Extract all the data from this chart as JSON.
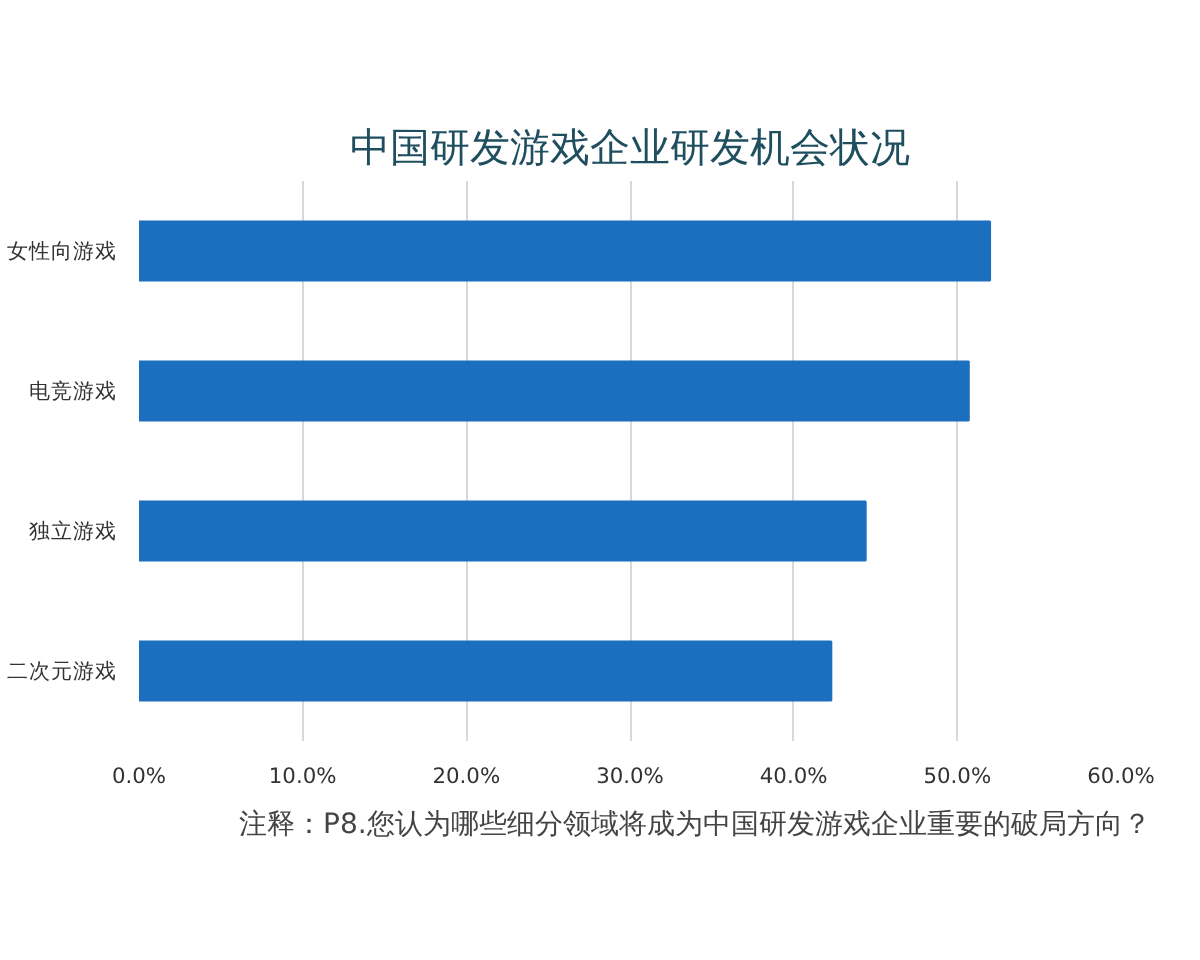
{
  "chart_data": {
    "type": "bar",
    "orientation": "horizontal",
    "title": "中国研发游戏企业研发机会状况",
    "categories": [
      "女性向游戏",
      "电竞游戏",
      "独立游戏",
      "二次元游戏"
    ],
    "values": [
      52.0,
      50.7,
      44.4,
      42.3
    ],
    "color": "#1c6fbe",
    "xlim": [
      0,
      60
    ],
    "xticks": [
      {
        "value": 0,
        "label": "0.0%"
      },
      {
        "value": 10,
        "label": "10.0%"
      },
      {
        "value": 20,
        "label": "20.0%"
      },
      {
        "value": 30,
        "label": "30.0%"
      },
      {
        "value": 40,
        "label": "40.0%"
      },
      {
        "value": 50,
        "label": "50.0%"
      },
      {
        "value": 60,
        "label": "60.0%"
      }
    ],
    "grid": "x",
    "annotations": [
      "注释：P8.您认为哪些细分领域将成为中国研发游戏企业重要的破局方向？"
    ]
  }
}
